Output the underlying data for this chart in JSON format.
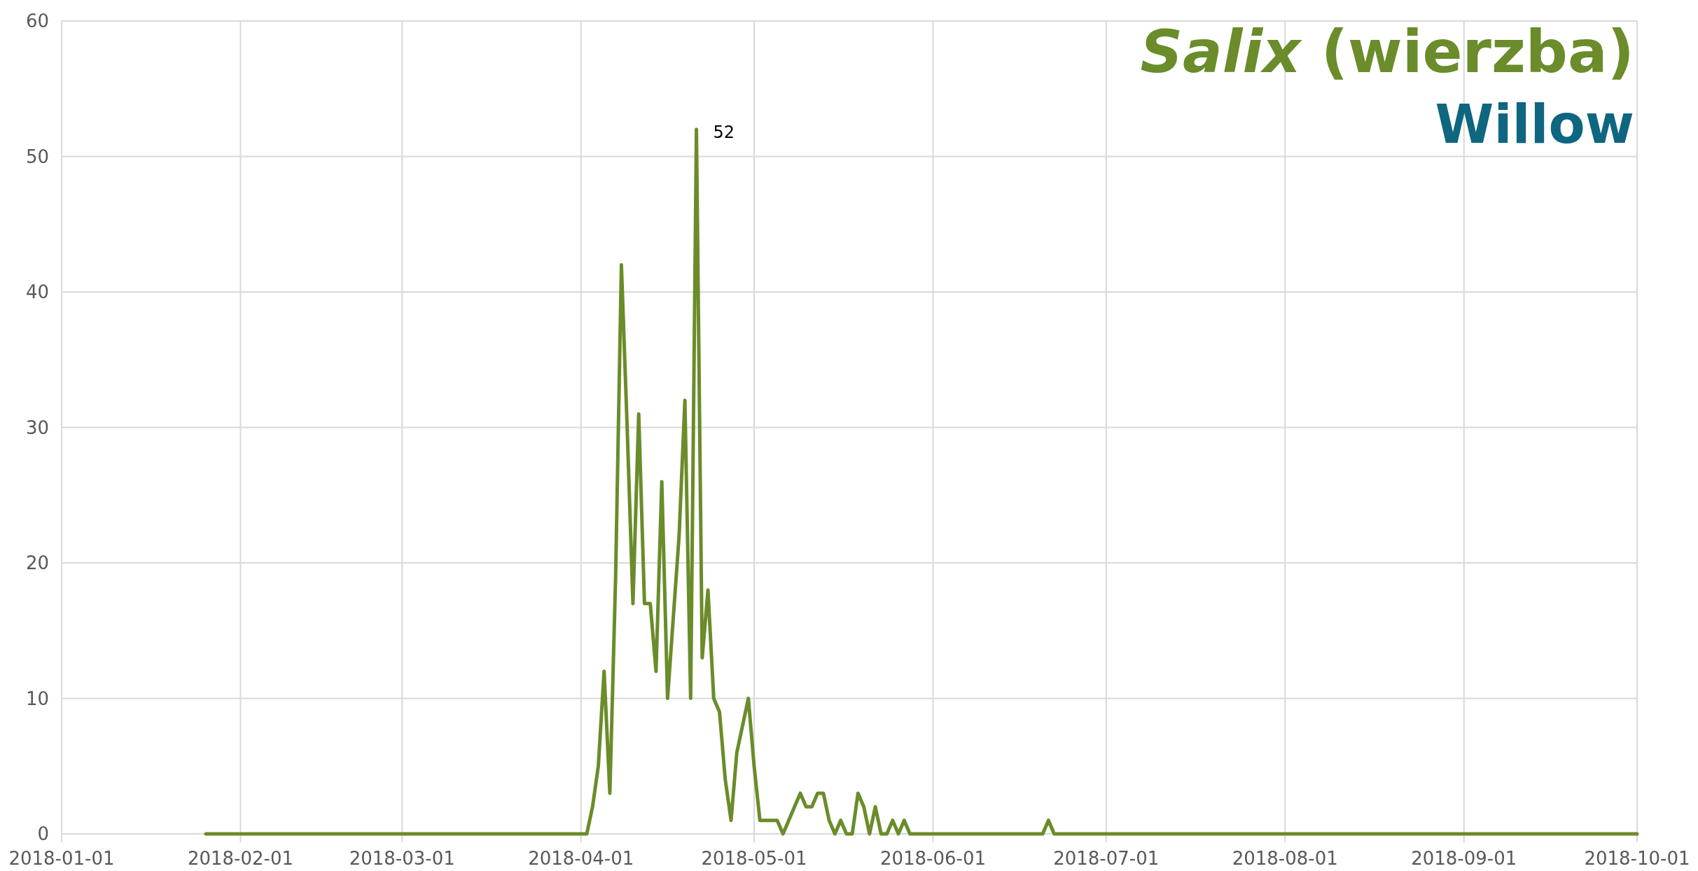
{
  "chart_data": {
    "type": "line",
    "title": "Salix (wierzba)",
    "subtitle": "Willow",
    "x": [
      "2018-01-26",
      "2018-04-02",
      "2018-04-03",
      "2018-04-04",
      "2018-04-05",
      "2018-04-06",
      "2018-04-07",
      "2018-04-08",
      "2018-04-09",
      "2018-04-10",
      "2018-04-11",
      "2018-04-12",
      "2018-04-13",
      "2018-04-14",
      "2018-04-15",
      "2018-04-16",
      "2018-04-17",
      "2018-04-18",
      "2018-04-19",
      "2018-04-20",
      "2018-04-21",
      "2018-04-22",
      "2018-04-23",
      "2018-04-24",
      "2018-04-25",
      "2018-04-26",
      "2018-04-27",
      "2018-04-28",
      "2018-04-29",
      "2018-04-30",
      "2018-05-01",
      "2018-05-02",
      "2018-05-03",
      "2018-05-04",
      "2018-05-05",
      "2018-05-06",
      "2018-05-07",
      "2018-05-08",
      "2018-05-09",
      "2018-05-10",
      "2018-05-11",
      "2018-05-12",
      "2018-05-13",
      "2018-05-14",
      "2018-05-15",
      "2018-05-16",
      "2018-05-17",
      "2018-05-18",
      "2018-05-19",
      "2018-05-20",
      "2018-05-21",
      "2018-05-22",
      "2018-05-23",
      "2018-05-24",
      "2018-05-25",
      "2018-05-26",
      "2018-05-27",
      "2018-05-28",
      "2018-06-20",
      "2018-06-21",
      "2018-06-22",
      "2018-10-01"
    ],
    "series": [
      {
        "color": "#6a8c2a",
        "values": [
          0,
          0,
          2,
          5,
          12,
          3,
          19,
          42,
          30,
          17,
          31,
          17,
          17,
          12,
          26,
          10,
          16,
          22,
          32,
          10,
          52,
          13,
          18,
          10,
          9,
          4,
          1,
          6,
          8,
          10,
          5,
          1,
          1,
          1,
          1,
          0,
          1,
          2,
          3,
          2,
          2,
          3,
          3,
          1,
          0,
          1,
          0,
          0,
          3,
          2,
          0,
          2,
          0,
          0,
          1,
          0,
          1,
          0,
          0,
          1,
          0,
          0
        ]
      }
    ],
    "xlim": [
      "2018-01-01",
      "2018-10-01"
    ],
    "xticks": [
      {
        "value": "2018-01-01",
        "label": "2018-01-01"
      },
      {
        "value": "2018-02-01",
        "label": "2018-02-01"
      },
      {
        "value": "2018-03-01",
        "label": "2018-03-01"
      },
      {
        "value": "2018-04-01",
        "label": "2018-04-01"
      },
      {
        "value": "2018-05-01",
        "label": "2018-05-01"
      },
      {
        "value": "2018-06-01",
        "label": "2018-06-01"
      },
      {
        "value": "2018-07-01",
        "label": "2018-07-01"
      },
      {
        "value": "2018-08-01",
        "label": "2018-08-01"
      },
      {
        "value": "2018-09-01",
        "label": "2018-09-01"
      },
      {
        "value": "2018-10-01",
        "label": "2018-10-01"
      }
    ],
    "ylim": [
      0,
      60
    ],
    "yticks": [
      0,
      10,
      20,
      30,
      40,
      50,
      60
    ],
    "grid": true,
    "marker": "none",
    "line_style": "solid",
    "annotations": [
      {
        "text": "52",
        "x": "2018-04-21",
        "y": 52
      }
    ]
  }
}
